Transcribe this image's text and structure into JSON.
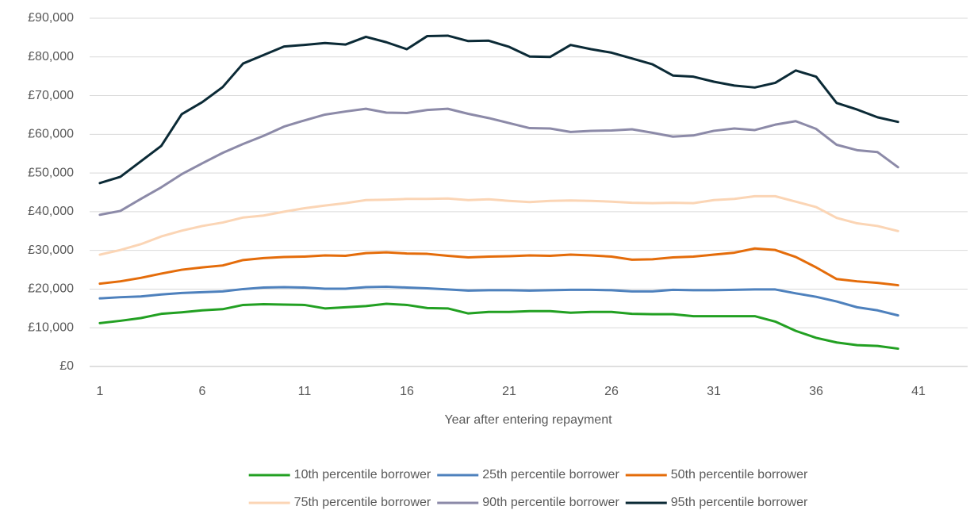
{
  "chart_data": {
    "type": "line",
    "x_label": "Year after entering repayment",
    "x": [
      1,
      2,
      3,
      4,
      5,
      6,
      7,
      8,
      9,
      10,
      11,
      12,
      13,
      14,
      15,
      16,
      17,
      18,
      19,
      20,
      21,
      22,
      23,
      24,
      25,
      26,
      27,
      28,
      29,
      30,
      31,
      32,
      33,
      34,
      35,
      36,
      37,
      38,
      39,
      40
    ],
    "xlim": [
      0.5,
      43.4
    ],
    "xticks": [
      1,
      6,
      11,
      16,
      21,
      26,
      31,
      36,
      41
    ],
    "ylim": [
      0,
      90000
    ],
    "yticks": [
      {
        "value": 0,
        "label": "£0"
      },
      {
        "value": 10000,
        "label": "£10,000"
      },
      {
        "value": 20000,
        "label": "£20,000"
      },
      {
        "value": 30000,
        "label": "£30,000"
      },
      {
        "value": 40000,
        "label": "£40,000"
      },
      {
        "value": 50000,
        "label": "£50,000"
      },
      {
        "value": 60000,
        "label": "£60,000"
      },
      {
        "value": 70000,
        "label": "£70,000"
      },
      {
        "value": 80000,
        "label": "£80,000"
      },
      {
        "value": 90000,
        "label": "£90,000"
      }
    ],
    "grid": true,
    "legend": "bottom",
    "series": [
      {
        "name": "10th percentile borrower",
        "color": "#22a022",
        "values": [
          11200,
          11800,
          12500,
          13600,
          14000,
          14500,
          14800,
          15900,
          16100,
          16000,
          15900,
          15000,
          15300,
          15600,
          16200,
          15900,
          15100,
          15000,
          13700,
          14100,
          14100,
          14300,
          14300,
          13900,
          14100,
          14100,
          13600,
          13500,
          13500,
          13000,
          13000,
          13000,
          13000,
          11600,
          9200,
          7400,
          6200,
          5500,
          5300,
          4600
        ]
      },
      {
        "name": "25th percentile borrower",
        "color": "#4e81bd",
        "values": [
          17600,
          17900,
          18100,
          18600,
          19000,
          19200,
          19400,
          20000,
          20400,
          20500,
          20400,
          20100,
          20100,
          20500,
          20600,
          20400,
          20200,
          19900,
          19600,
          19700,
          19700,
          19600,
          19700,
          19800,
          19800,
          19700,
          19400,
          19400,
          19800,
          19700,
          19700,
          19800,
          19900,
          19900,
          18900,
          18000,
          16800,
          15300,
          14500,
          13200
        ]
      },
      {
        "name": "50th percentile borrower",
        "color": "#e46c0a",
        "values": [
          21400,
          22000,
          22900,
          24000,
          25000,
          25600,
          26100,
          27500,
          28000,
          28300,
          28400,
          28700,
          28600,
          29300,
          29500,
          29200,
          29100,
          28600,
          28200,
          28400,
          28500,
          28700,
          28600,
          28900,
          28700,
          28400,
          27600,
          27700,
          28200,
          28400,
          28900,
          29400,
          30500,
          30100,
          28300,
          25600,
          22600,
          22000,
          21600,
          21000
        ]
      },
      {
        "name": "75th percentile borrower",
        "color": "#fbd5b5",
        "values": [
          28900,
          30100,
          31600,
          33600,
          35100,
          36300,
          37200,
          38500,
          39000,
          40000,
          40900,
          41600,
          42200,
          43000,
          43100,
          43300,
          43300,
          43400,
          43000,
          43200,
          42800,
          42500,
          42800,
          42900,
          42800,
          42600,
          42300,
          42200,
          42300,
          42200,
          43000,
          43300,
          44000,
          44000,
          42600,
          41200,
          38400,
          37000,
          36300,
          35000
        ]
      },
      {
        "name": "90th percentile borrower",
        "color": "#8c8aa8",
        "values": [
          39200,
          40200,
          43300,
          46300,
          49700,
          52500,
          55200,
          57500,
          59600,
          62000,
          63600,
          65100,
          65900,
          66600,
          65600,
          65500,
          66300,
          66600,
          65300,
          64200,
          62900,
          61600,
          61500,
          60600,
          60900,
          61000,
          61300,
          60400,
          59400,
          59700,
          60900,
          61500,
          61100,
          62500,
          63400,
          61400,
          57300,
          55900,
          55400,
          51500
        ]
      },
      {
        "name": "95th percentile borrower",
        "color": "#0b2a36",
        "values": [
          47400,
          49000,
          53000,
          57000,
          65200,
          68300,
          72200,
          78300,
          80500,
          82700,
          83100,
          83600,
          83200,
          85200,
          83800,
          82000,
          85400,
          85500,
          84100,
          84200,
          82600,
          80100,
          80000,
          83100,
          82000,
          81100,
          79600,
          78100,
          75200,
          74900,
          73600,
          72600,
          72100,
          73300,
          76500,
          74900,
          68100,
          66400,
          64400,
          63200
        ]
      }
    ]
  }
}
